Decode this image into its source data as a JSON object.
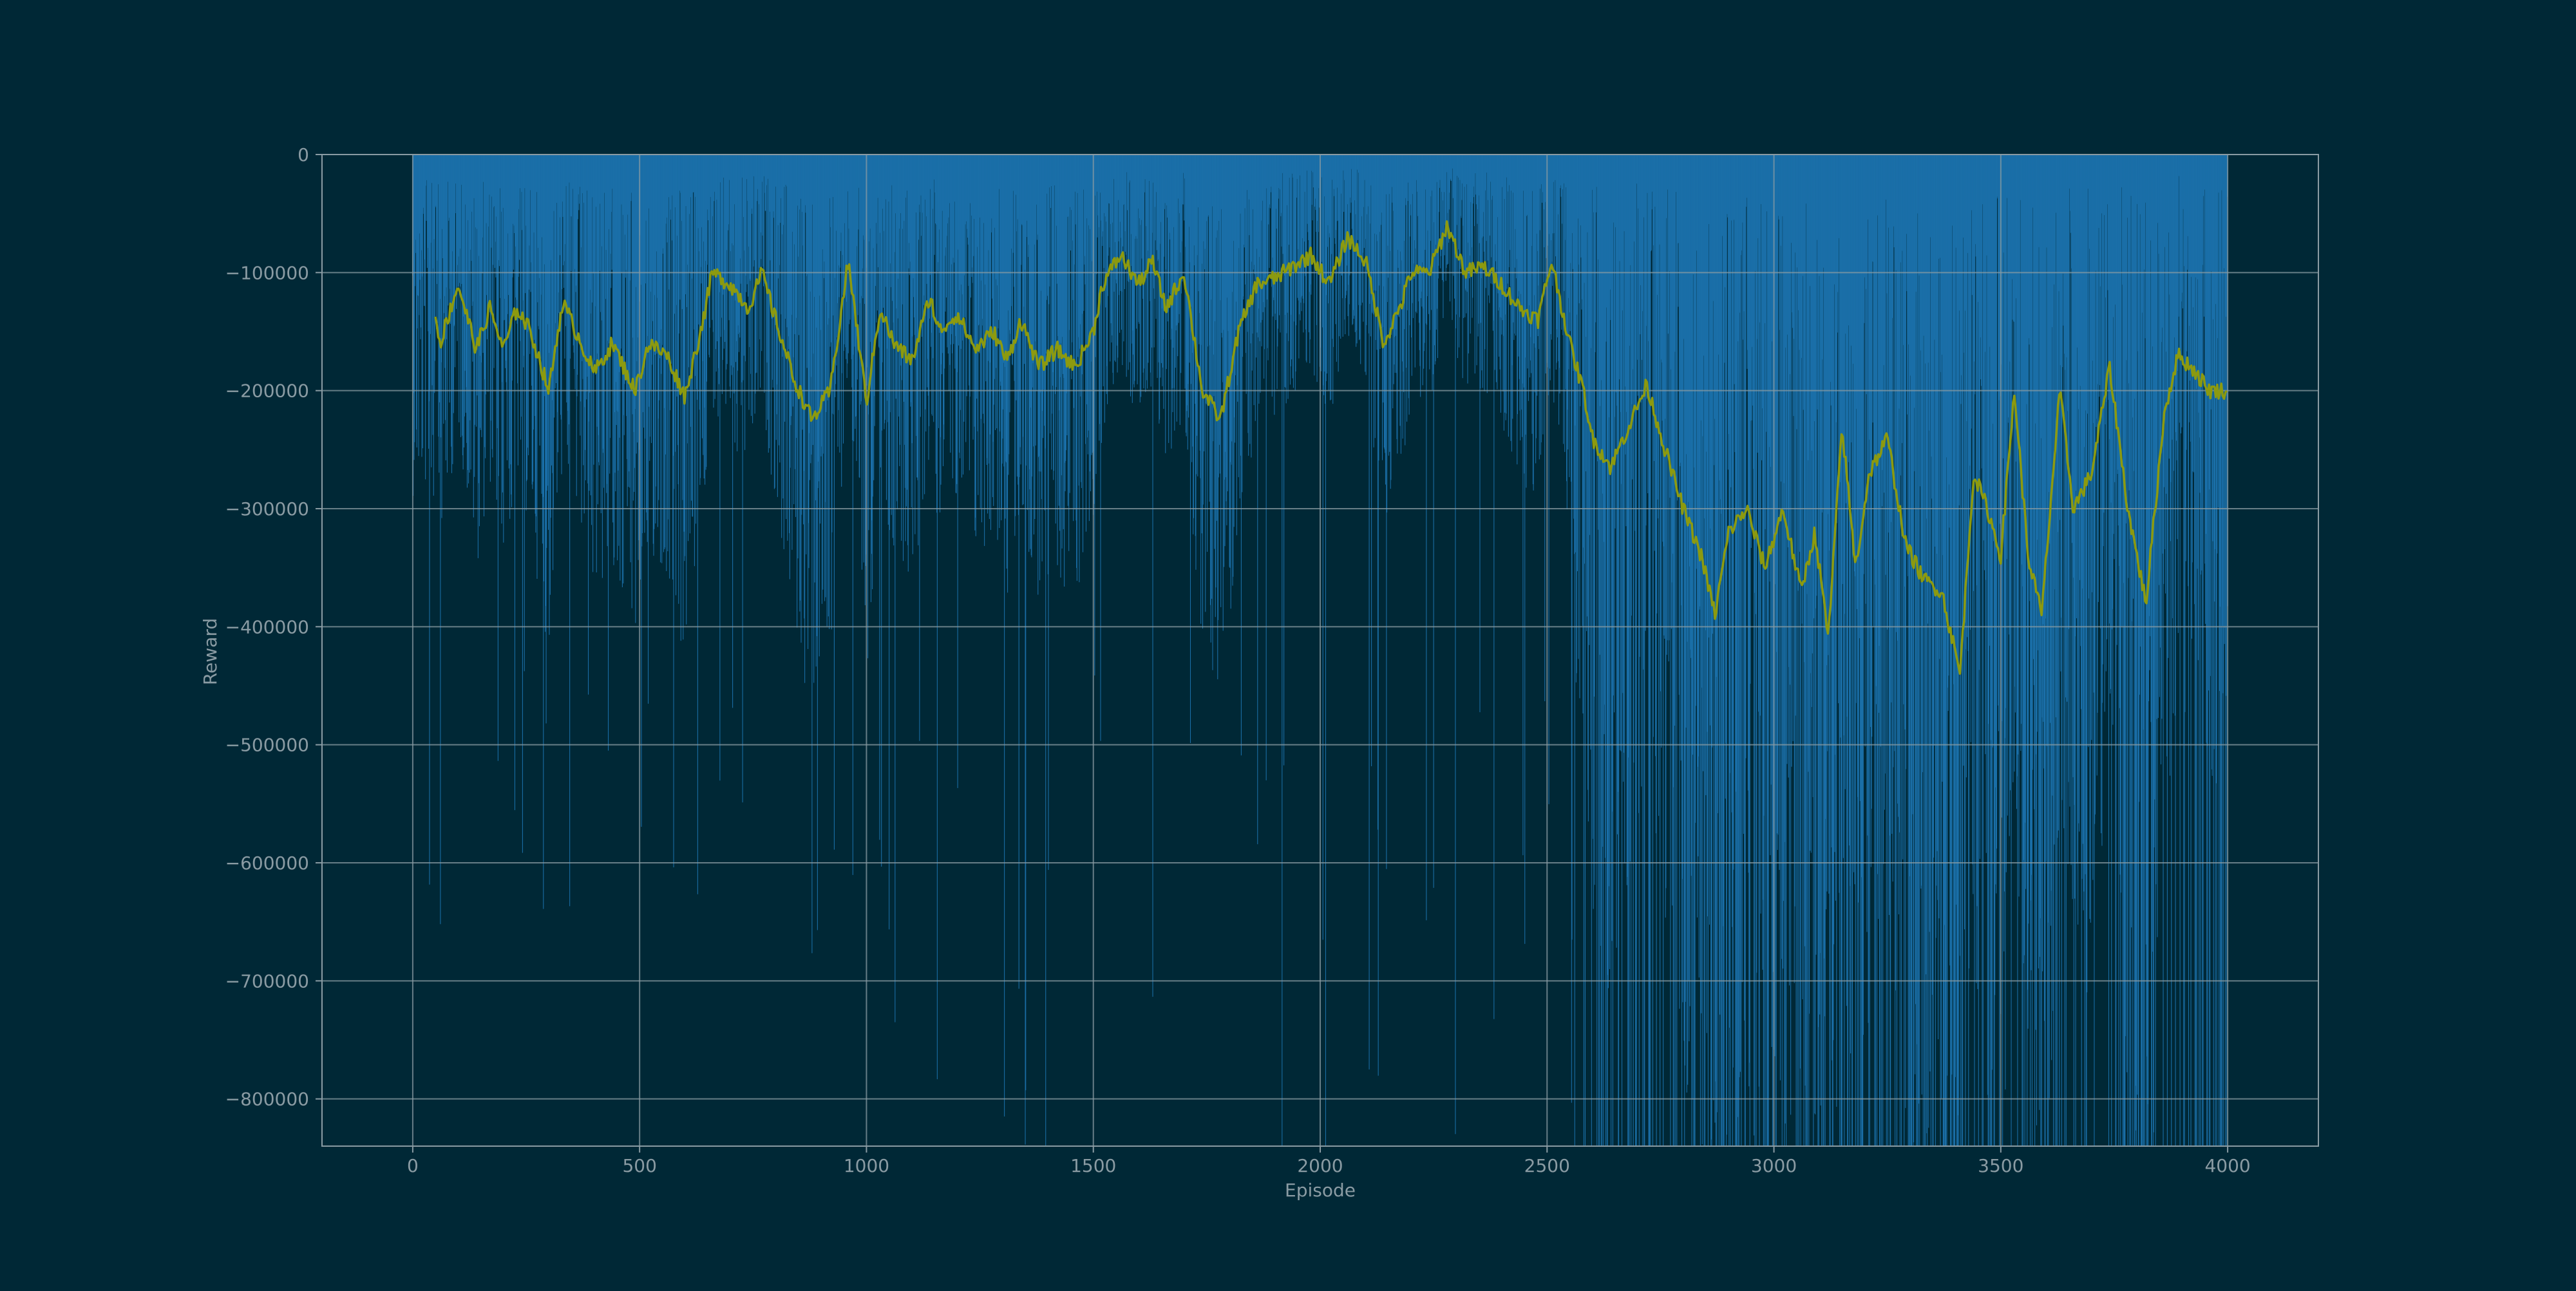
{
  "chart_data": {
    "type": "bar",
    "title": "",
    "xlabel": "Episode",
    "ylabel": "Reward",
    "xlim": [
      -200,
      4200
    ],
    "ylim": [
      -840000,
      0
    ],
    "xticks": [
      0,
      500,
      1000,
      1500,
      2000,
      2500,
      3000,
      3500,
      4000
    ],
    "xtick_labels": [
      "0",
      "500",
      "1000",
      "1500",
      "2000",
      "2500",
      "3000",
      "3500",
      "4000"
    ],
    "yticks": [
      0,
      -100000,
      -200000,
      -300000,
      -400000,
      -500000,
      -600000,
      -700000,
      -800000
    ],
    "ytick_labels": [
      "0",
      "−100000",
      "−200000",
      "−300000",
      "−400000",
      "−500000",
      "−600000",
      "−700000",
      "−800000"
    ],
    "grid": true,
    "legend": "none",
    "colors": {
      "background": "#002836",
      "bars": "#1a6fa8",
      "moving_average": "#8c9a0f",
      "grid": "#8a9ba3",
      "axis_text": "#8a9ba3"
    },
    "series": [
      {
        "kind": "bar",
        "episodes": [
          0,
          4000
        ],
        "description_values": "per-episode reward, mostly between 0 and -450000 before episode 2550, frequently reaching below -840000 after episode 2550",
        "typical_min_early": -450000,
        "typical_min_late": -840000
      },
      {
        "kind": "line",
        "x": [
          50,
          60,
          100,
          140,
          170,
          200,
          230,
          260,
          300,
          330,
          360,
          400,
          440,
          490,
          520,
          560,
          600,
          640,
          660,
          700,
          740,
          770,
          800,
          840,
          880,
          920,
          960,
          1000,
          1030,
          1060,
          1100,
          1140,
          1160,
          1200,
          1240,
          1280,
          1310,
          1340,
          1380,
          1420,
          1460,
          1500,
          1520,
          1560,
          1600,
          1630,
          1660,
          1700,
          1740,
          1780,
          1820,
          1860,
          1900,
          1940,
          1980,
          2020,
          2060,
          2100,
          2140,
          2180,
          2200,
          2240,
          2280,
          2320,
          2360,
          2400,
          2440,
          2480,
          2510,
          2550,
          2580,
          2600,
          2640,
          2680,
          2720,
          2760,
          2800,
          2840,
          2870,
          2900,
          2940,
          2980,
          3020,
          3060,
          3090,
          3120,
          3150,
          3180,
          3210,
          3250,
          3290,
          3330,
          3370,
          3410,
          3440,
          3470,
          3500,
          3530,
          3560,
          3590,
          3630,
          3660,
          3700,
          3740,
          3780,
          3820,
          3860,
          3890,
          3920,
          3960,
          4000
        ],
        "y": [
          -135000,
          -160000,
          -110000,
          -165000,
          -130000,
          -165000,
          -130000,
          -150000,
          -200000,
          -125000,
          -150000,
          -185000,
          -160000,
          -200000,
          -160000,
          -170000,
          -205000,
          -140000,
          -100000,
          -110000,
          -130000,
          -100000,
          -140000,
          -190000,
          -225000,
          -200000,
          -90000,
          -210000,
          -130000,
          -160000,
          -175000,
          -120000,
          -150000,
          -135000,
          -165000,
          -150000,
          -175000,
          -140000,
          -180000,
          -165000,
          -180000,
          -150000,
          -110000,
          -85000,
          -110000,
          -90000,
          -130000,
          -100000,
          -200000,
          -225000,
          -150000,
          -110000,
          -105000,
          -95000,
          -85000,
          -110000,
          -70000,
          -90000,
          -160000,
          -125000,
          -100000,
          -100000,
          -60000,
          -100000,
          -95000,
          -110000,
          -130000,
          -140000,
          -90000,
          -160000,
          -200000,
          -240000,
          -265000,
          -230000,
          -195000,
          -250000,
          -300000,
          -340000,
          -390000,
          -320000,
          -300000,
          -350000,
          -300000,
          -370000,
          -320000,
          -410000,
          -230000,
          -350000,
          -270000,
          -240000,
          -330000,
          -360000,
          -370000,
          -440000,
          -270000,
          -300000,
          -340000,
          -200000,
          -340000,
          -390000,
          -200000,
          -300000,
          -270000,
          -180000,
          -300000,
          -380000,
          -220000,
          -170000,
          -180000,
          -200000,
          -200000
        ]
      }
    ]
  }
}
